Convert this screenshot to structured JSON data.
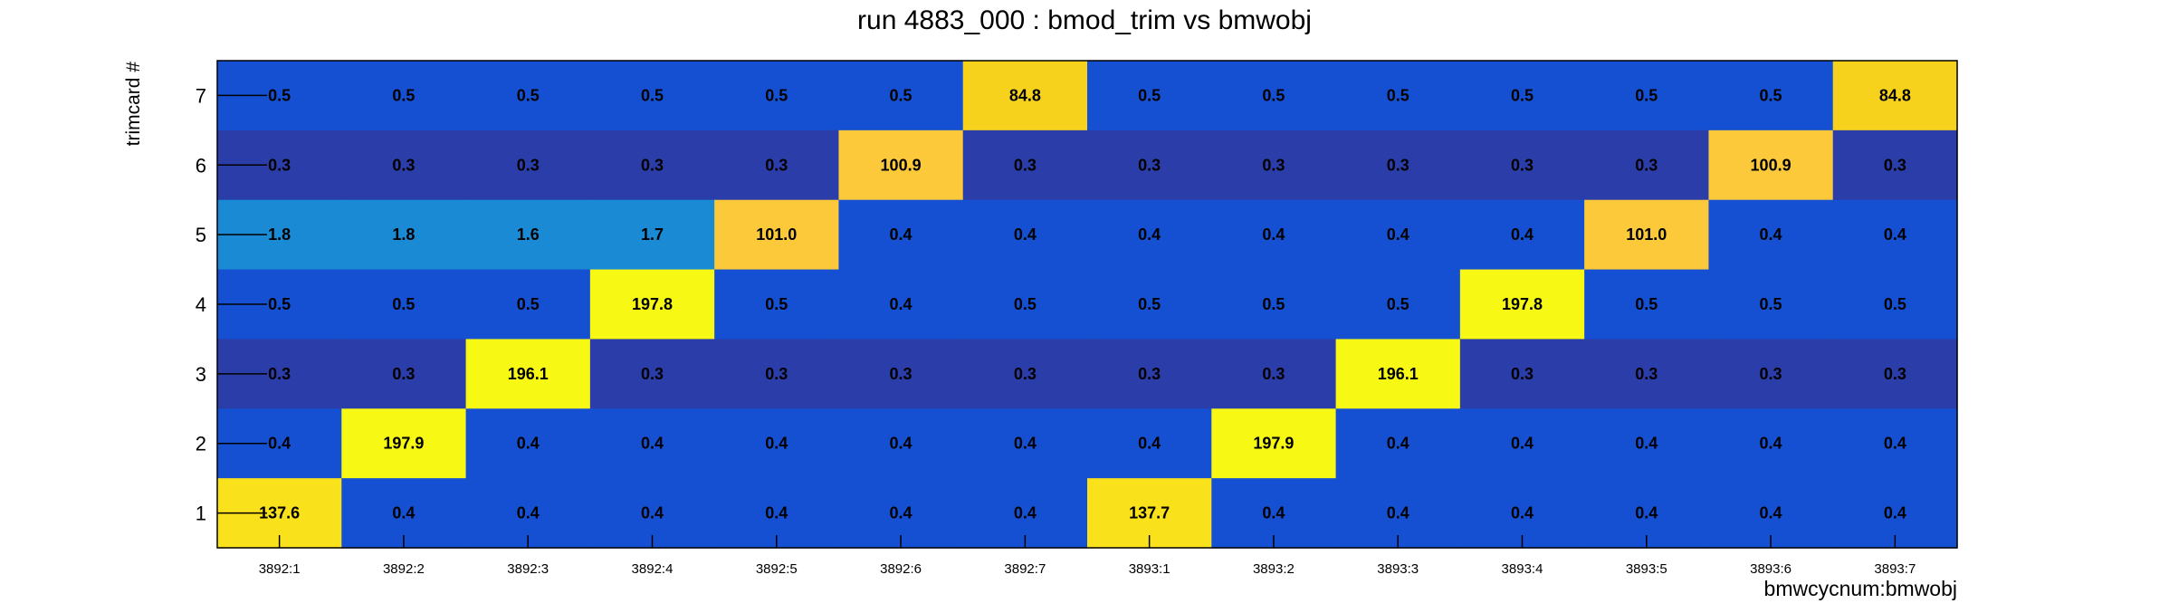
{
  "chart_data": {
    "type": "heatmap",
    "title": "run 4883_000 : bmod_trim vs bmwobj",
    "xlabel": "bmwcycnum:bmwobj",
    "ylabel": "trimcard #",
    "x_categories": [
      "3892:1",
      "3892:2",
      "3892:3",
      "3892:4",
      "3892:5",
      "3892:6",
      "3892:7",
      "3893:1",
      "3893:2",
      "3893:3",
      "3893:4",
      "3893:5",
      "3893:6",
      "3893:7"
    ],
    "y_categories": [
      "1",
      "2",
      "3",
      "4",
      "5",
      "6",
      "7"
    ],
    "rows": [
      {
        "y": "7",
        "values": [
          "0.5",
          "0.5",
          "0.5",
          "0.5",
          "0.5",
          "0.5",
          "84.8",
          "0.5",
          "0.5",
          "0.5",
          "0.5",
          "0.5",
          "0.5",
          "84.8"
        ]
      },
      {
        "y": "6",
        "values": [
          "0.3",
          "0.3",
          "0.3",
          "0.3",
          "0.3",
          "100.9",
          "0.3",
          "0.3",
          "0.3",
          "0.3",
          "0.3",
          "0.3",
          "100.9",
          "0.3"
        ]
      },
      {
        "y": "5",
        "values": [
          "1.8",
          "1.8",
          "1.6",
          "1.7",
          "101.0",
          "0.4",
          "0.4",
          "0.4",
          "0.4",
          "0.4",
          "0.4",
          "101.0",
          "0.4",
          "0.4"
        ]
      },
      {
        "y": "4",
        "values": [
          "0.5",
          "0.5",
          "0.5",
          "197.8",
          "0.5",
          "0.4",
          "0.5",
          "0.5",
          "0.5",
          "0.5",
          "197.8",
          "0.5",
          "0.5",
          "0.5"
        ]
      },
      {
        "y": "3",
        "values": [
          "0.3",
          "0.3",
          "196.1",
          "0.3",
          "0.3",
          "0.3",
          "0.3",
          "0.3",
          "0.3",
          "196.1",
          "0.3",
          "0.3",
          "0.3",
          "0.3"
        ]
      },
      {
        "y": "2",
        "values": [
          "0.4",
          "197.9",
          "0.4",
          "0.4",
          "0.4",
          "0.4",
          "0.4",
          "0.4",
          "197.9",
          "0.4",
          "0.4",
          "0.4",
          "0.4",
          "0.4"
        ]
      },
      {
        "y": "1",
        "values": [
          "137.6",
          "0.4",
          "0.4",
          "0.4",
          "0.4",
          "0.4",
          "0.4",
          "137.7",
          "0.4",
          "0.4",
          "0.4",
          "0.4",
          "0.4",
          "0.4"
        ]
      }
    ],
    "colors": {
      "highest": "#f7f914",
      "high": "#f9e11c",
      "mid_high": "#fcc93a",
      "mid": "#f7d21d",
      "low_teal": "#1a8ad4",
      "low_blue": "#1650d2",
      "lowest": "#2a3da8"
    },
    "grid": false
  }
}
